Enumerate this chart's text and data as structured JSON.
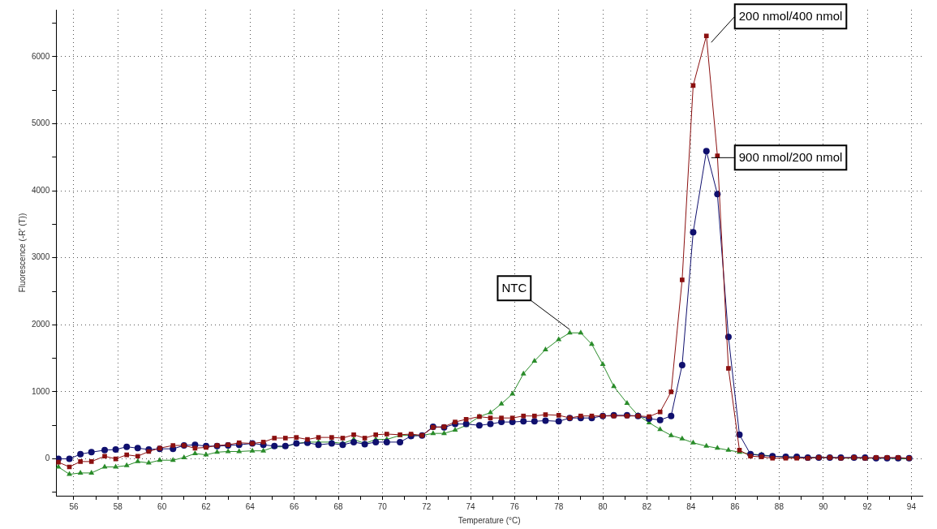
{
  "chart_data": {
    "type": "line",
    "xlabel": "Temperature (°C)",
    "ylabel": "Fluorescence (-R' (T))",
    "x": [
      55.3,
      55.8,
      56.3,
      56.8,
      57.4,
      57.9,
      58.4,
      58.9,
      59.4,
      59.9,
      60.5,
      61.0,
      61.5,
      62.0,
      62.5,
      63.0,
      63.5,
      64.1,
      64.6,
      65.1,
      65.6,
      66.1,
      66.6,
      67.1,
      67.7,
      68.2,
      68.7,
      69.2,
      69.7,
      70.2,
      70.8,
      71.3,
      71.8,
      72.3,
      72.8,
      73.3,
      73.8,
      74.4,
      74.9,
      75.4,
      75.9,
      76.4,
      76.9,
      77.4,
      78.0,
      78.5,
      79.0,
      79.5,
      80.0,
      80.5,
      81.1,
      81.6,
      82.1,
      82.6,
      83.1,
      83.6,
      84.1,
      84.7,
      85.2,
      85.7,
      86.2,
      86.7,
      87.2,
      87.7,
      88.3,
      88.8,
      89.3,
      89.8,
      90.3,
      90.8,
      91.4,
      91.9,
      92.4,
      92.9,
      93.4,
      93.9
    ],
    "series": [
      {
        "name": "200 nmol/400 nmol",
        "color": "#8b1010",
        "marker": "square",
        "values": [
          -50,
          -120,
          -40,
          -40,
          40,
          0,
          60,
          40,
          110,
          160,
          200,
          200,
          160,
          170,
          200,
          210,
          240,
          230,
          250,
          310,
          310,
          320,
          290,
          320,
          320,
          310,
          360,
          310,
          360,
          370,
          360,
          370,
          350,
          470,
          480,
          550,
          590,
          630,
          610,
          610,
          610,
          640,
          640,
          660,
          650,
          610,
          640,
          640,
          640,
          640,
          640,
          640,
          630,
          700,
          1000,
          2670,
          5570,
          6310,
          4520,
          1350,
          130,
          40,
          30,
          10,
          10,
          10,
          10,
          20,
          20,
          10,
          20,
          10,
          20,
          20,
          20,
          10
        ]
      },
      {
        "name": "900 nmol/200 nmol",
        "color": "#10106e",
        "marker": "circle",
        "values": [
          0,
          0,
          70,
          100,
          130,
          140,
          180,
          160,
          140,
          150,
          150,
          200,
          210,
          190,
          190,
          200,
          210,
          230,
          210,
          190,
          190,
          230,
          240,
          210,
          230,
          210,
          250,
          220,
          250,
          250,
          250,
          340,
          350,
          480,
          470,
          520,
          520,
          500,
          520,
          550,
          550,
          560,
          560,
          570,
          560,
          610,
          610,
          610,
          640,
          650,
          650,
          640,
          600,
          580,
          640,
          1400,
          3380,
          4590,
          3950,
          1820,
          360,
          70,
          50,
          40,
          30,
          30,
          20,
          20,
          20,
          20,
          20,
          20,
          10,
          10,
          10,
          10
        ]
      },
      {
        "name": "NTC",
        "color": "#2a8c2a",
        "marker": "triangle",
        "values": [
          -120,
          -230,
          -210,
          -210,
          -120,
          -120,
          -100,
          -40,
          -60,
          -20,
          -20,
          20,
          80,
          60,
          100,
          110,
          110,
          120,
          120,
          180,
          180,
          230,
          250,
          250,
          250,
          230,
          290,
          230,
          290,
          290,
          350,
          350,
          350,
          380,
          380,
          430,
          500,
          630,
          690,
          820,
          970,
          1270,
          1460,
          1630,
          1780,
          1880,
          1880,
          1710,
          1410,
          1080,
          830,
          650,
          540,
          440,
          350,
          300,
          240,
          190,
          160,
          130,
          100,
          70,
          60,
          40,
          30,
          20,
          20,
          20,
          20,
          10,
          10,
          10,
          10,
          10,
          0,
          0
        ]
      }
    ],
    "xlim": [
      55.2,
      94.5
    ],
    "ylim": [
      -550,
      6700
    ],
    "xticks": [
      56,
      {
        "value": 57,
        "label": null
      },
      58,
      {
        "value": 59,
        "label": null
      },
      60,
      {
        "value": 61,
        "label": null
      },
      62,
      {
        "value": 63,
        "label": null
      },
      64,
      {
        "value": 65,
        "label": null
      },
      66,
      {
        "value": 67,
        "label": null
      },
      68,
      {
        "value": 69,
        "label": null
      },
      70,
      {
        "value": 71,
        "label": null
      },
      72,
      {
        "value": 73,
        "label": null
      },
      74,
      {
        "value": 75,
        "label": null
      },
      76,
      {
        "value": 77,
        "label": null
      },
      78,
      {
        "value": 79,
        "label": null
      },
      80,
      {
        "value": 81,
        "label": null
      },
      82,
      {
        "value": 83,
        "label": null
      },
      84,
      {
        "value": 85,
        "label": null
      },
      86,
      {
        "value": 87,
        "label": null
      },
      88,
      {
        "value": 89,
        "label": null
      },
      90,
      {
        "value": 91,
        "label": null
      },
      92,
      {
        "value": 93,
        "label": null
      },
      94
    ],
    "yticks": [
      {
        "value": -500,
        "label": null
      },
      0,
      {
        "value": 500,
        "label": null
      },
      1000,
      {
        "value": 1500,
        "label": null
      },
      2000,
      {
        "value": 2500,
        "label": null
      },
      3000,
      {
        "value": 3500,
        "label": null
      },
      4000,
      {
        "value": 4500,
        "label": null
      },
      5000,
      {
        "value": 5500,
        "label": null
      },
      6000,
      {
        "value": 6500,
        "label": null
      }
    ],
    "grid": true,
    "legend": false,
    "line_style": "solid"
  }
}
